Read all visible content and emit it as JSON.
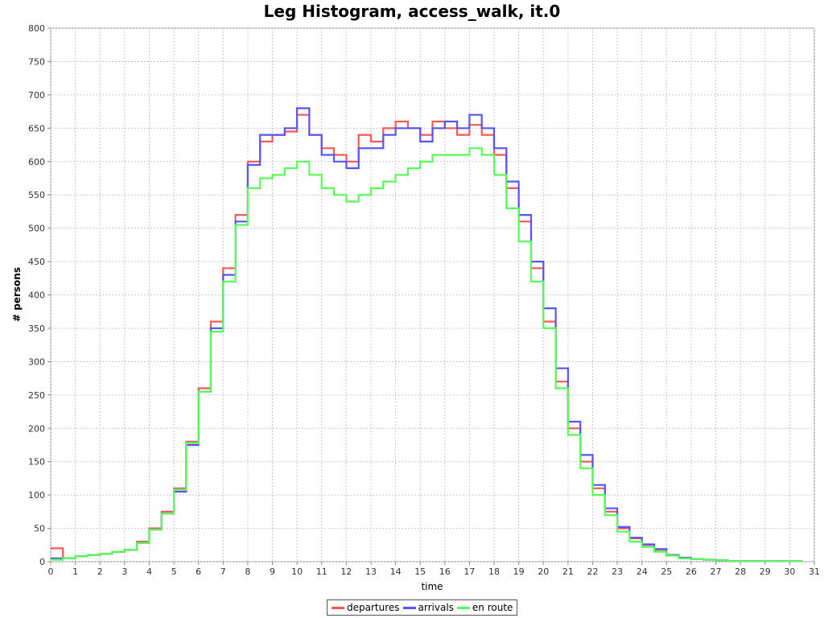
{
  "chart_data": {
    "type": "line",
    "title": "Leg Histogram, access_walk, it.0",
    "xlabel": "time",
    "ylabel": "# persons",
    "xlim": [
      0,
      31
    ],
    "ylim": [
      0,
      800
    ],
    "xticks": [
      0,
      1,
      2,
      3,
      4,
      5,
      6,
      7,
      8,
      9,
      10,
      11,
      12,
      13,
      14,
      15,
      16,
      17,
      18,
      19,
      20,
      21,
      22,
      23,
      24,
      25,
      26,
      27,
      28,
      29,
      30,
      31
    ],
    "yticks": [
      0,
      50,
      100,
      150,
      200,
      250,
      300,
      350,
      400,
      450,
      500,
      550,
      600,
      650,
      700,
      750,
      800
    ],
    "grid": true,
    "legend": "bottom-center",
    "x": [
      0,
      0.5,
      1,
      1.5,
      2,
      2.5,
      3,
      3.5,
      4,
      4.5,
      5,
      5.5,
      6,
      6.5,
      7,
      7.5,
      8,
      8.5,
      9,
      9.5,
      10,
      10.5,
      11,
      11.5,
      12,
      12.5,
      13,
      13.5,
      14,
      14.5,
      15,
      15.5,
      16,
      16.5,
      17,
      17.5,
      18,
      18.5,
      19,
      19.5,
      20,
      20.5,
      21,
      21.5,
      22,
      22.5,
      23,
      23.5,
      24,
      24.5,
      25,
      25.5,
      26,
      26.5,
      27,
      27.5,
      28,
      28.5,
      29,
      29.5,
      30
    ],
    "series": [
      {
        "name": "departures",
        "color": "#ff5555",
        "values": [
          20,
          5,
          8,
          10,
          12,
          15,
          18,
          30,
          50,
          75,
          110,
          180,
          260,
          360,
          440,
          520,
          600,
          630,
          640,
          645,
          670,
          640,
          620,
          610,
          600,
          640,
          630,
          650,
          660,
          650,
          640,
          660,
          650,
          640,
          655,
          640,
          610,
          560,
          510,
          440,
          360,
          270,
          200,
          150,
          110,
          75,
          50,
          35,
          25,
          18,
          10,
          5,
          4,
          3,
          2,
          1,
          1,
          1,
          1,
          1,
          1
        ]
      },
      {
        "name": "arrivals",
        "color": "#5555ff",
        "values": [
          5,
          5,
          8,
          10,
          12,
          15,
          18,
          28,
          48,
          72,
          105,
          175,
          255,
          350,
          430,
          510,
          595,
          640,
          640,
          650,
          680,
          640,
          610,
          600,
          590,
          620,
          620,
          640,
          650,
          650,
          630,
          650,
          660,
          650,
          670,
          650,
          620,
          570,
          520,
          450,
          380,
          290,
          210,
          160,
          115,
          80,
          52,
          36,
          26,
          19,
          10,
          6,
          4,
          3,
          2,
          1,
          1,
          1,
          1,
          1,
          1
        ]
      },
      {
        "name": "en route",
        "color": "#55ff55",
        "values": [
          3,
          5,
          8,
          10,
          12,
          15,
          18,
          28,
          48,
          72,
          108,
          178,
          255,
          345,
          420,
          505,
          560,
          575,
          580,
          590,
          600,
          580,
          560,
          550,
          540,
          550,
          560,
          570,
          580,
          590,
          600,
          610,
          610,
          610,
          620,
          610,
          580,
          530,
          480,
          420,
          350,
          260,
          190,
          140,
          100,
          70,
          45,
          30,
          22,
          15,
          9,
          5,
          4,
          3,
          2,
          1,
          1,
          1,
          1,
          1,
          1
        ]
      }
    ]
  }
}
